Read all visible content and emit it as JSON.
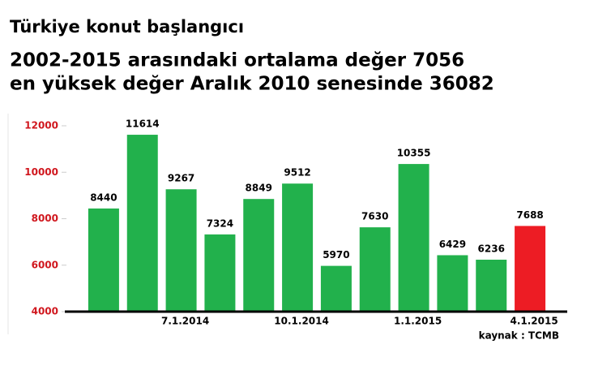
{
  "chart_data": {
    "type": "bar",
    "title": "Türkiye konut başlangıcı",
    "subtitle": [
      "2002-2015 arasındaki ortalama değer 7056",
      "en yüksek değer Aralık 2010 senesinde 36082"
    ],
    "source": "kaynak : TCMB",
    "categories": [
      null,
      null,
      "7.1.2014",
      null,
      null,
      "10.1.2014",
      null,
      null,
      "1.1.2015",
      null,
      null,
      "4.1.2015"
    ],
    "values": [
      8440,
      11614,
      9267,
      7324,
      8849,
      9512,
      5970,
      7630,
      10355,
      6429,
      6236,
      7688
    ],
    "colors": [
      "#22b14c",
      "#22b14c",
      "#22b14c",
      "#22b14c",
      "#22b14c",
      "#22b14c",
      "#22b14c",
      "#22b14c",
      "#22b14c",
      "#22b14c",
      "#22b14c",
      "#ed1c24"
    ],
    "ylim": [
      4000,
      12000
    ],
    "yticks": [
      4000,
      6000,
      8000,
      10000,
      12000
    ],
    "grid": false
  }
}
